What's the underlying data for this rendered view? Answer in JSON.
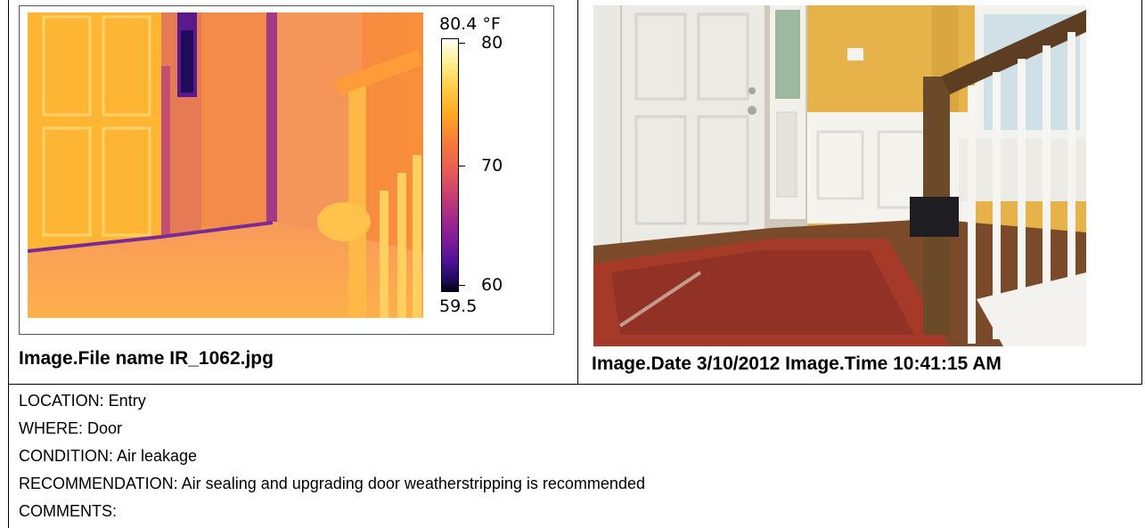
{
  "thermal": {
    "scale_max": "80.4 °F",
    "scale_min": "59.5",
    "tick_labels": [
      "80",
      "70",
      "60"
    ]
  },
  "captions": {
    "file_name": "Image.File name IR_1062.jpg",
    "date_time": "Image.Date 3/10/2012  Image.Time 10:41:15 AM"
  },
  "details": {
    "location": "LOCATION:  Entry",
    "where": "WHERE:  Door",
    "condition": "CONDITION:  Air leakage",
    "recommendation": "RECOMMENDATION: Air sealing and upgrading door weatherstripping is recommended",
    "comments": "COMMENTS:"
  },
  "colors": {
    "ir_hot": "#ffb030",
    "ir_cold": "#1a0a54",
    "wall_yellow": "#e6b24a",
    "trim_white": "#f4f3ee"
  }
}
